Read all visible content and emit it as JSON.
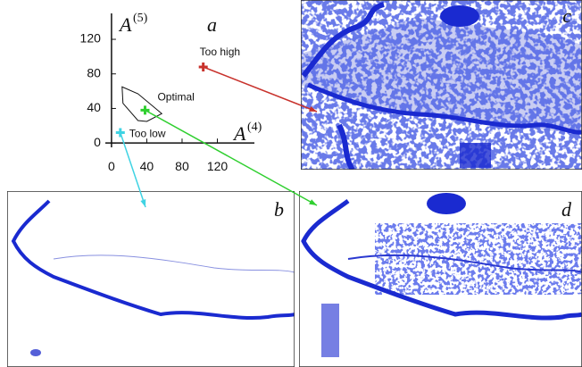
{
  "chart_data": {
    "type": "scatter",
    "label": "a",
    "xlabel": "A",
    "xlabel_sup": "(4)",
    "ylabel": "A",
    "ylabel_sup": "(5)",
    "xlim": [
      -7,
      162
    ],
    "ylim": [
      -5,
      150
    ],
    "xticks": [
      0,
      40,
      80,
      120
    ],
    "yticks": [
      0,
      40,
      80,
      120
    ],
    "region": {
      "name": "Optimal",
      "x": [
        12,
        30,
        57,
        40,
        30,
        13
      ],
      "y": [
        65,
        57,
        34,
        25,
        26,
        46
      ]
    },
    "series": [
      {
        "name": "Too high",
        "color": "#c8322c",
        "x": [
          104
        ],
        "values": [
          88
        ]
      },
      {
        "name": "Optimal",
        "color": "#2fcf2f",
        "x": [
          38
        ],
        "values": [
          38
        ]
      },
      {
        "name": "Too low",
        "color": "#3fd3e3",
        "x": [
          10
        ],
        "values": [
          12
        ]
      }
    ]
  },
  "panels": {
    "b": "b",
    "c": "c",
    "d": "d"
  }
}
